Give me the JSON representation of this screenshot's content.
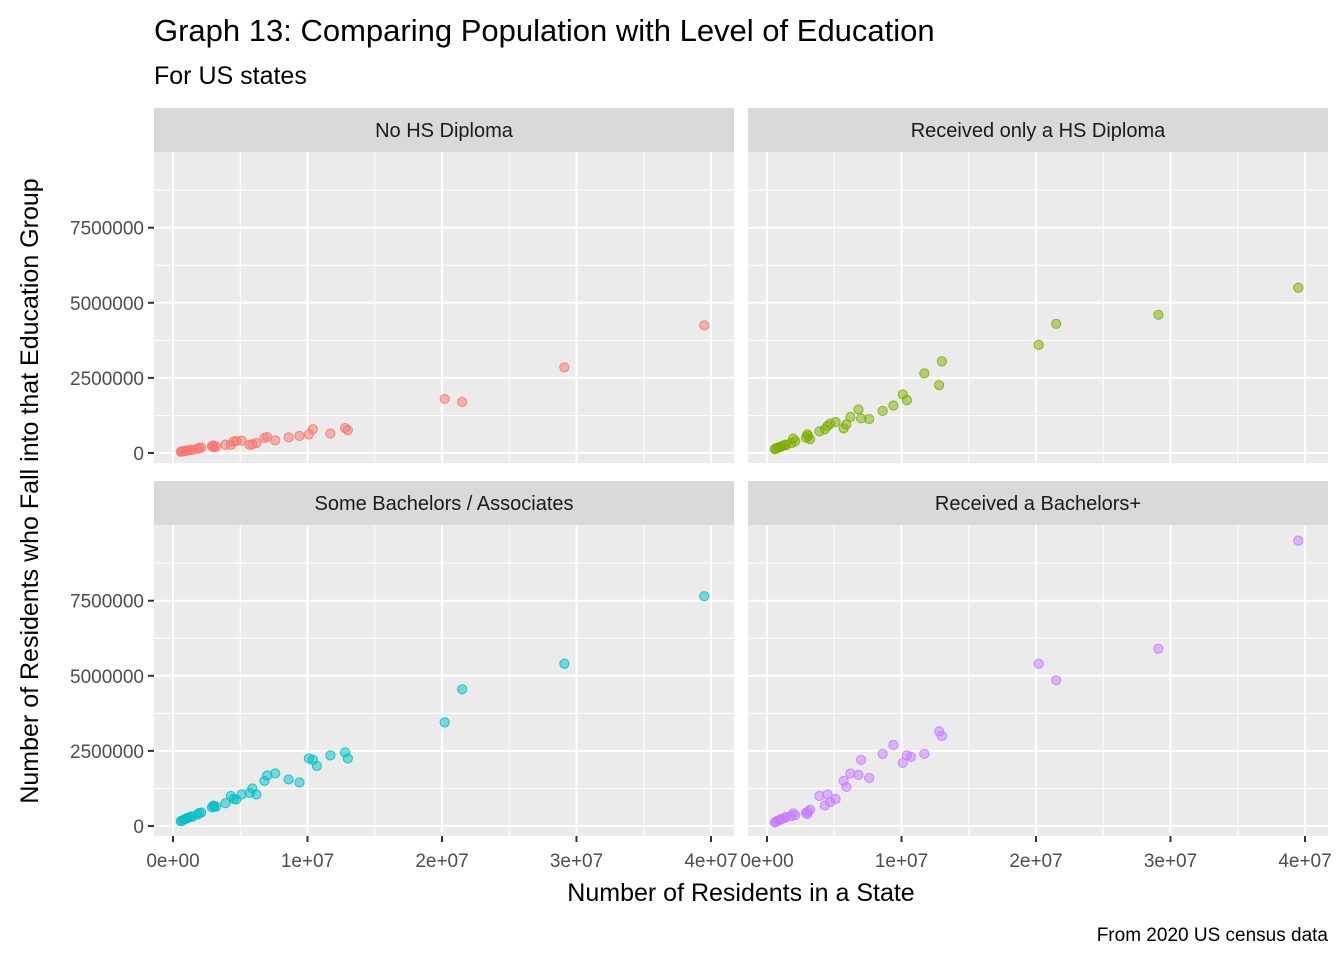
{
  "title": "Graph 13: Comparing Population with Level of Education",
  "subtitle": "For US states",
  "caption": "From 2020 US census data",
  "chart_data": {
    "type": "scatter",
    "facet": "2x2",
    "xlabel": "Number of Residents in a State",
    "ylabel": "Number of Residents who Fall into that Education Group",
    "xlim": [
      0,
      40000000
    ],
    "ylim": [
      0,
      10000000
    ],
    "x_ticks": [
      0,
      10000000,
      20000000,
      30000000,
      40000000
    ],
    "x_tick_labels": [
      "0e+00",
      "1e+07",
      "2e+07",
      "3e+07",
      "4e+07"
    ],
    "y_ticks": [
      0,
      2500000,
      5000000,
      7500000
    ],
    "y_tick_labels": [
      "0",
      "2500000",
      "5000000",
      "7500000"
    ],
    "grid": true,
    "legend": "none",
    "point_alpha": 0.5,
    "panels": [
      {
        "name": "No HS Diploma",
        "color": "#F8766D",
        "points": [
          [
            580000,
            40000
          ],
          [
            650000,
            50000
          ],
          [
            770000,
            60000
          ],
          [
            900000,
            70000
          ],
          [
            1000000,
            80000
          ],
          [
            1100000,
            90000
          ],
          [
            1350000,
            110000
          ],
          [
            1400000,
            100000
          ],
          [
            1800000,
            140000
          ],
          [
            1950000,
            170000
          ],
          [
            2100000,
            180000
          ],
          [
            2900000,
            230000
          ],
          [
            3000000,
            250000
          ],
          [
            3050000,
            190000
          ],
          [
            3200000,
            210000
          ],
          [
            3900000,
            280000
          ],
          [
            4300000,
            270000
          ],
          [
            4500000,
            380000
          ],
          [
            4700000,
            400000
          ],
          [
            5100000,
            410000
          ],
          [
            5700000,
            270000
          ],
          [
            5900000,
            290000
          ],
          [
            6200000,
            330000
          ],
          [
            6800000,
            500000
          ],
          [
            7000000,
            530000
          ],
          [
            7600000,
            420000
          ],
          [
            8600000,
            520000
          ],
          [
            9400000,
            570000
          ],
          [
            10100000,
            620000
          ],
          [
            10400000,
            790000
          ],
          [
            11700000,
            650000
          ],
          [
            12800000,
            830000
          ],
          [
            13000000,
            760000
          ],
          [
            20200000,
            1800000
          ],
          [
            21500000,
            1700000
          ],
          [
            29100000,
            2850000
          ],
          [
            39500000,
            4250000
          ]
        ]
      },
      {
        "name": "Received only a HS Diploma",
        "color": "#7CAE00",
        "points": [
          [
            580000,
            130000
          ],
          [
            650000,
            150000
          ],
          [
            770000,
            170000
          ],
          [
            900000,
            190000
          ],
          [
            1000000,
            200000
          ],
          [
            1100000,
            230000
          ],
          [
            1350000,
            280000
          ],
          [
            1400000,
            260000
          ],
          [
            1800000,
            330000
          ],
          [
            1950000,
            480000
          ],
          [
            2100000,
            390000
          ],
          [
            2900000,
            510000
          ],
          [
            3000000,
            620000
          ],
          [
            3050000,
            560000
          ],
          [
            3200000,
            460000
          ],
          [
            3900000,
            720000
          ],
          [
            4300000,
            790000
          ],
          [
            4500000,
            900000
          ],
          [
            4700000,
            980000
          ],
          [
            5100000,
            1030000
          ],
          [
            5700000,
            820000
          ],
          [
            5900000,
            950000
          ],
          [
            6200000,
            1200000
          ],
          [
            6800000,
            1450000
          ],
          [
            7000000,
            1150000
          ],
          [
            7600000,
            1130000
          ],
          [
            8600000,
            1400000
          ],
          [
            9400000,
            1580000
          ],
          [
            10100000,
            1950000
          ],
          [
            10400000,
            1760000
          ],
          [
            11700000,
            2650000
          ],
          [
            12800000,
            2260000
          ],
          [
            13000000,
            3050000
          ],
          [
            20200000,
            3600000
          ],
          [
            21500000,
            4300000
          ],
          [
            29100000,
            4600000
          ],
          [
            39500000,
            5500000
          ]
        ]
      },
      {
        "name": "Some Bachelors / Associates",
        "color": "#00BFC4",
        "points": [
          [
            580000,
            160000
          ],
          [
            650000,
            170000
          ],
          [
            770000,
            200000
          ],
          [
            900000,
            230000
          ],
          [
            1000000,
            250000
          ],
          [
            1100000,
            270000
          ],
          [
            1350000,
            320000
          ],
          [
            1400000,
            300000
          ],
          [
            1800000,
            380000
          ],
          [
            1950000,
            430000
          ],
          [
            2100000,
            450000
          ],
          [
            2900000,
            620000
          ],
          [
            3000000,
            680000
          ],
          [
            3050000,
            650000
          ],
          [
            3200000,
            640000
          ],
          [
            3900000,
            760000
          ],
          [
            4300000,
            1000000
          ],
          [
            4500000,
            900000
          ],
          [
            4700000,
            880000
          ],
          [
            5100000,
            1050000
          ],
          [
            5700000,
            1100000
          ],
          [
            5900000,
            1250000
          ],
          [
            6200000,
            1050000
          ],
          [
            6800000,
            1500000
          ],
          [
            7000000,
            1680000
          ],
          [
            7600000,
            1750000
          ],
          [
            8600000,
            1550000
          ],
          [
            9400000,
            1450000
          ],
          [
            10100000,
            2250000
          ],
          [
            10400000,
            2200000
          ],
          [
            10700000,
            2000000
          ],
          [
            11700000,
            2350000
          ],
          [
            12800000,
            2450000
          ],
          [
            13000000,
            2250000
          ],
          [
            20200000,
            3450000
          ],
          [
            21500000,
            4550000
          ],
          [
            29100000,
            5400000
          ],
          [
            39500000,
            7650000
          ]
        ]
      },
      {
        "name": "Received a Bachelors+",
        "color": "#C77CFF",
        "points": [
          [
            580000,
            120000
          ],
          [
            650000,
            140000
          ],
          [
            770000,
            170000
          ],
          [
            900000,
            190000
          ],
          [
            1000000,
            220000
          ],
          [
            1100000,
            240000
          ],
          [
            1350000,
            270000
          ],
          [
            1400000,
            300000
          ],
          [
            1800000,
            330000
          ],
          [
            1950000,
            420000
          ],
          [
            2100000,
            360000
          ],
          [
            2900000,
            440000
          ],
          [
            3000000,
            400000
          ],
          [
            3050000,
            480000
          ],
          [
            3200000,
            540000
          ],
          [
            3900000,
            1000000
          ],
          [
            4300000,
            680000
          ],
          [
            4500000,
            1050000
          ],
          [
            4700000,
            800000
          ],
          [
            5100000,
            900000
          ],
          [
            5700000,
            1500000
          ],
          [
            5900000,
            1300000
          ],
          [
            6200000,
            1750000
          ],
          [
            6800000,
            1700000
          ],
          [
            7000000,
            2200000
          ],
          [
            7600000,
            1600000
          ],
          [
            8600000,
            2400000
          ],
          [
            9400000,
            2700000
          ],
          [
            10100000,
            2100000
          ],
          [
            10400000,
            2350000
          ],
          [
            10700000,
            2300000
          ],
          [
            11700000,
            2400000
          ],
          [
            12800000,
            3150000
          ],
          [
            13000000,
            3000000
          ],
          [
            20200000,
            5400000
          ],
          [
            21500000,
            4850000
          ],
          [
            29100000,
            5900000
          ],
          [
            39500000,
            9500000
          ]
        ]
      }
    ]
  }
}
